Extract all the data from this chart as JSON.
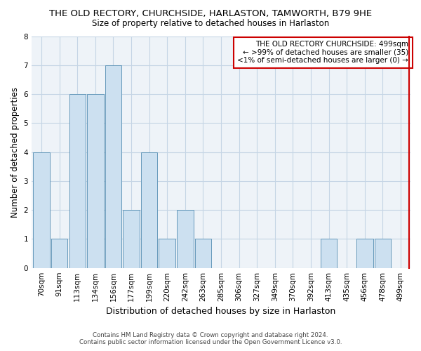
{
  "title1": "THE OLD RECTORY, CHURCHSIDE, HARLASTON, TAMWORTH, B79 9HE",
  "title2": "Size of property relative to detached houses in Harlaston",
  "xlabel": "Distribution of detached houses by size in Harlaston",
  "ylabel": "Number of detached properties",
  "categories": [
    "70sqm",
    "91sqm",
    "113sqm",
    "134sqm",
    "156sqm",
    "177sqm",
    "199sqm",
    "220sqm",
    "242sqm",
    "263sqm",
    "285sqm",
    "306sqm",
    "327sqm",
    "349sqm",
    "370sqm",
    "392sqm",
    "413sqm",
    "435sqm",
    "456sqm",
    "478sqm",
    "499sqm"
  ],
  "values": [
    4,
    1,
    6,
    6,
    7,
    2,
    4,
    1,
    2,
    1,
    0,
    0,
    0,
    0,
    0,
    0,
    1,
    0,
    1,
    1,
    0
  ],
  "bar_color": "#cce0f0",
  "bar_edge_color": "#6699bb",
  "red_line_index": 20,
  "ylim": [
    0,
    8
  ],
  "yticks": [
    0,
    1,
    2,
    3,
    4,
    5,
    6,
    7,
    8
  ],
  "legend_title": "THE OLD RECTORY CHURCHSIDE: 499sqm",
  "legend_line1": "← >99% of detached houses are smaller (35)",
  "legend_line2": "<1% of semi-detached houses are larger (0) →",
  "footer1": "Contains HM Land Registry data © Crown copyright and database right 2024.",
  "footer2": "Contains public sector information licensed under the Open Government Licence v3.0.",
  "background_color": "#eef3f8",
  "grid_color": "#c5d5e5"
}
